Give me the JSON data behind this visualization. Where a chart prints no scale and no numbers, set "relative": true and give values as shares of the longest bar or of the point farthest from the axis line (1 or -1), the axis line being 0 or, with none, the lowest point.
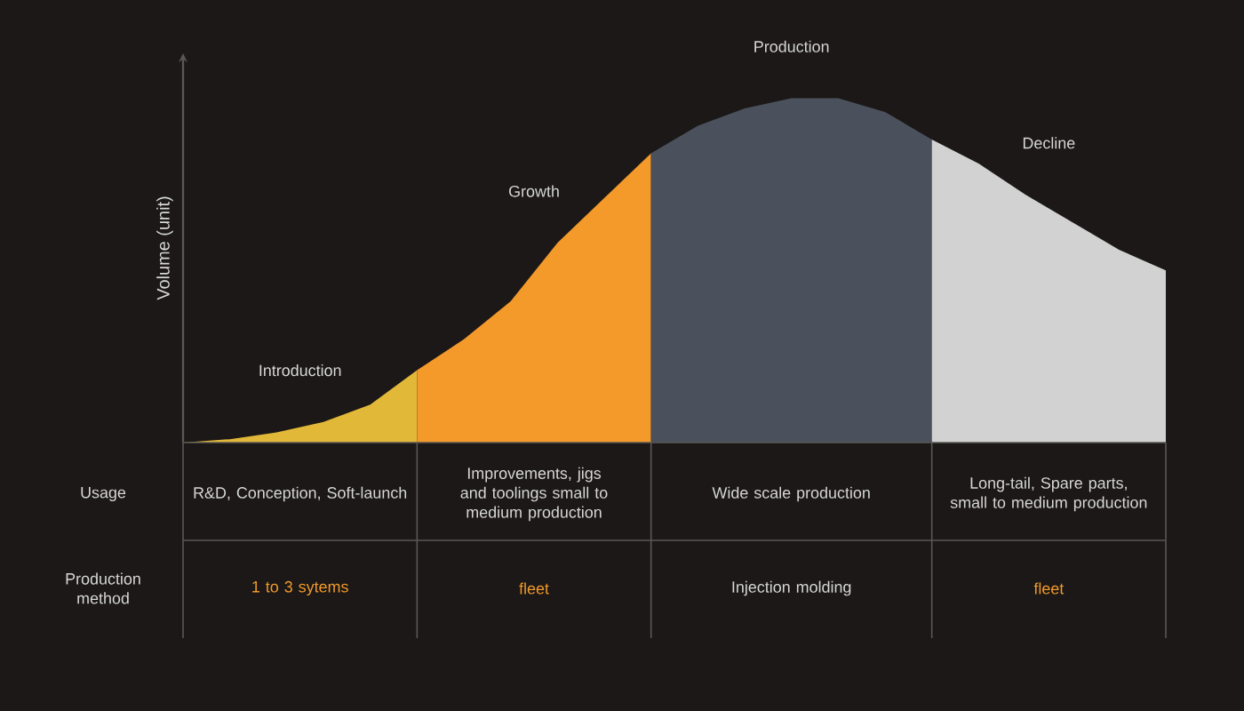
{
  "chart_data": {
    "type": "area",
    "relative": true,
    "ylabel": "Volume (unit)",
    "categories": [
      null,
      null,
      null,
      null,
      null,
      null,
      null,
      null,
      null,
      null,
      null,
      null,
      null,
      null,
      null,
      null,
      null,
      null,
      null,
      null,
      null,
      null
    ],
    "series": [
      {
        "name": "Introduction",
        "color": "#e2b838",
        "values": [
          0,
          0.01,
          0.03,
          0.06,
          0.11,
          0.21,
          null,
          null,
          null,
          null,
          null,
          null,
          null,
          null,
          null,
          null,
          null,
          null,
          null,
          null,
          null,
          null
        ]
      },
      {
        "name": "Growth",
        "color": "#f39a2a",
        "values": [
          null,
          null,
          null,
          null,
          null,
          0.21,
          0.3,
          0.41,
          0.58,
          0.71,
          0.84,
          null,
          null,
          null,
          null,
          null,
          null,
          null,
          null,
          null,
          null,
          null
        ]
      },
      {
        "name": "Production",
        "color": "#4a515c",
        "values": [
          null,
          null,
          null,
          null,
          null,
          null,
          null,
          null,
          null,
          null,
          0.84,
          0.92,
          0.97,
          1,
          1,
          0.96,
          0.88,
          null,
          null,
          null,
          null,
          null
        ]
      },
      {
        "name": "Decline",
        "color": "#d2d2d2",
        "values": [
          null,
          null,
          null,
          null,
          null,
          null,
          null,
          null,
          null,
          null,
          null,
          null,
          null,
          null,
          null,
          null,
          0.88,
          0.81,
          0.72,
          0.64,
          0.56,
          0.5
        ]
      }
    ],
    "annotations": [
      "Usage",
      "R&D, Conception, Soft-launch",
      "Improvements, jigs and toolings small to medium production",
      "Wide scale production",
      "Long-tail, Spare parts, small to medium production",
      "Production method",
      "1 to 3 sytems",
      "fleet",
      "Injection molding",
      "fleet"
    ]
  }
}
